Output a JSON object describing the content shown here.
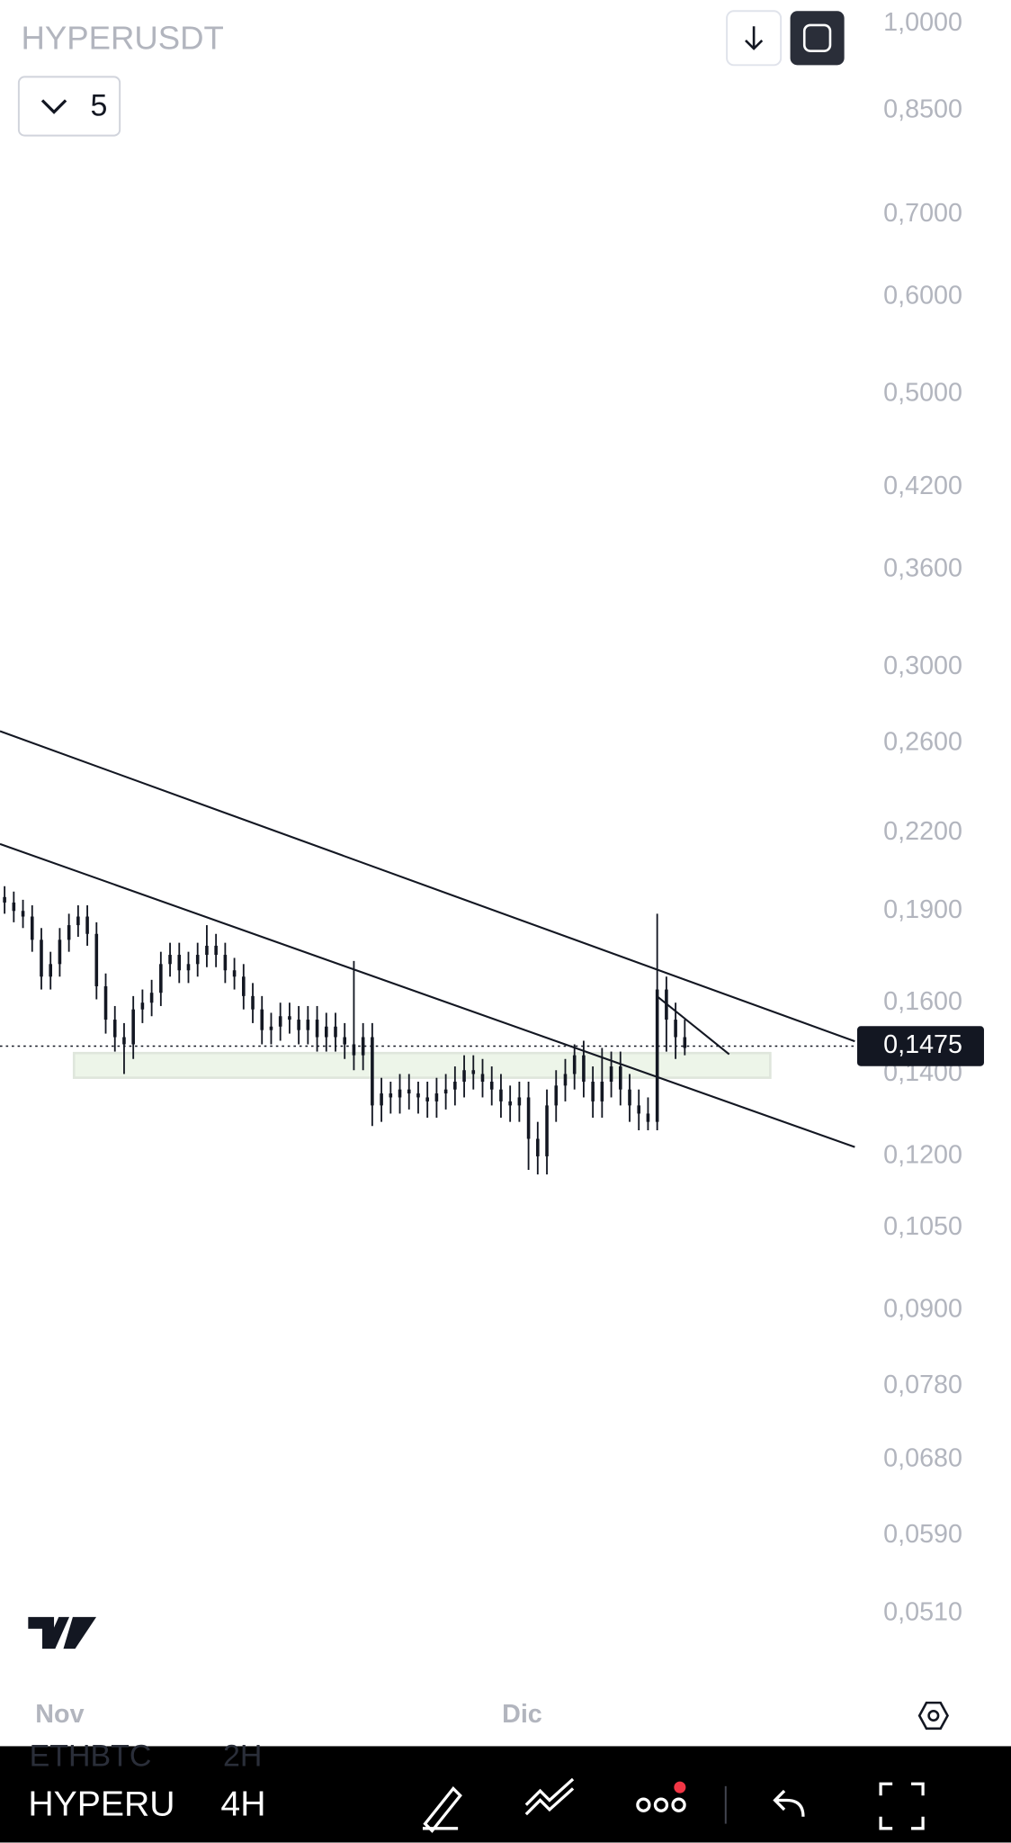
{
  "header": {
    "symbol": "HYPERUSDT",
    "layout_count": "5"
  },
  "chart_data": {
    "type": "candlestick",
    "color": "#131722",
    "yscale": "log",
    "grid": false,
    "x": [
      0.5,
      1.5,
      2.5,
      3.5,
      4.5,
      5.5,
      6.5,
      7.5,
      8.5,
      9.5,
      10.5,
      11.5,
      12.5,
      13.5,
      14.5,
      15.5,
      16.5,
      17.5,
      18.5,
      19.5,
      20.5,
      21.5,
      22.5,
      23.5,
      24.5,
      25.5,
      26.5,
      27.5,
      28.5,
      29.5,
      30.5,
      31.5,
      32.5,
      33.5,
      34.5,
      35.5,
      36.5,
      37.5,
      38.5,
      39.5,
      40.5,
      41.5,
      42.5,
      43.5,
      44.5,
      45.5,
      46.5,
      47.5,
      48.5,
      49.5,
      50.5,
      51.5,
      52.5,
      53.5,
      54.5,
      55.5,
      56.5,
      57.5,
      58.5,
      59.5,
      60.5,
      61.5,
      62.5,
      63.5,
      64.5,
      65.5,
      66.5,
      67.5,
      68.5,
      69.5,
      70.5,
      71.5,
      72.5,
      73.5,
      74.5
    ],
    "open": [
      0.195,
      0.193,
      0.19,
      0.188,
      0.18,
      0.168,
      0.172,
      0.18,
      0.185,
      0.188,
      0.182,
      0.165,
      0.155,
      0.15,
      0.148,
      0.158,
      0.16,
      0.163,
      0.172,
      0.175,
      0.17,
      0.172,
      0.175,
      0.178,
      0.175,
      0.17,
      0.168,
      0.162,
      0.158,
      0.152,
      0.153,
      0.156,
      0.155,
      0.152,
      0.155,
      0.15,
      0.153,
      0.15,
      0.148,
      0.145,
      0.15,
      0.132,
      0.135,
      0.134,
      0.136,
      0.135,
      0.134,
      0.133,
      0.135,
      0.136,
      0.138,
      0.141,
      0.14,
      0.138,
      0.136,
      0.133,
      0.132,
      0.134,
      0.124,
      0.12,
      0.132,
      0.137,
      0.14,
      0.145,
      0.138,
      0.133,
      0.138,
      0.142,
      0.136,
      0.132,
      0.13,
      0.128,
      0.164,
      0.155,
      0.15
    ],
    "high": [
      0.199,
      0.197,
      0.194,
      0.192,
      0.184,
      0.176,
      0.184,
      0.189,
      0.192,
      0.192,
      0.186,
      0.169,
      0.159,
      0.154,
      0.162,
      0.164,
      0.167,
      0.176,
      0.179,
      0.179,
      0.176,
      0.179,
      0.185,
      0.182,
      0.179,
      0.174,
      0.172,
      0.166,
      0.162,
      0.157,
      0.16,
      0.16,
      0.159,
      0.159,
      0.159,
      0.157,
      0.157,
      0.154,
      0.173,
      0.154,
      0.154,
      0.139,
      0.138,
      0.14,
      0.14,
      0.138,
      0.138,
      0.139,
      0.14,
      0.142,
      0.145,
      0.145,
      0.144,
      0.142,
      0.14,
      0.137,
      0.138,
      0.138,
      0.128,
      0.136,
      0.141,
      0.144,
      0.148,
      0.149,
      0.142,
      0.147,
      0.146,
      0.146,
      0.14,
      0.136,
      0.134,
      0.189,
      0.168,
      0.16,
      0.155
    ],
    "low": [
      0.189,
      0.186,
      0.184,
      0.176,
      0.164,
      0.164,
      0.168,
      0.176,
      0.181,
      0.178,
      0.161,
      0.151,
      0.146,
      0.14,
      0.144,
      0.154,
      0.156,
      0.159,
      0.168,
      0.166,
      0.166,
      0.168,
      0.171,
      0.171,
      0.166,
      0.164,
      0.158,
      0.154,
      0.148,
      0.148,
      0.149,
      0.151,
      0.148,
      0.148,
      0.146,
      0.146,
      0.146,
      0.144,
      0.141,
      0.141,
      0.127,
      0.128,
      0.13,
      0.13,
      0.131,
      0.13,
      0.129,
      0.129,
      0.131,
      0.132,
      0.134,
      0.136,
      0.134,
      0.132,
      0.129,
      0.128,
      0.128,
      0.117,
      0.116,
      0.116,
      0.128,
      0.133,
      0.136,
      0.134,
      0.129,
      0.129,
      0.134,
      0.132,
      0.128,
      0.126,
      0.126,
      0.126,
      0.146,
      0.144,
      0.145
    ],
    "close": [
      0.193,
      0.19,
      0.188,
      0.18,
      0.168,
      0.172,
      0.18,
      0.185,
      0.188,
      0.182,
      0.165,
      0.155,
      0.15,
      0.148,
      0.158,
      0.16,
      0.163,
      0.172,
      0.175,
      0.17,
      0.172,
      0.175,
      0.178,
      0.175,
      0.17,
      0.168,
      0.162,
      0.158,
      0.152,
      0.153,
      0.156,
      0.155,
      0.152,
      0.155,
      0.15,
      0.153,
      0.15,
      0.148,
      0.145,
      0.15,
      0.132,
      0.135,
      0.134,
      0.136,
      0.135,
      0.134,
      0.133,
      0.135,
      0.136,
      0.138,
      0.141,
      0.14,
      0.138,
      0.136,
      0.133,
      0.132,
      0.134,
      0.124,
      0.12,
      0.132,
      0.137,
      0.14,
      0.145,
      0.138,
      0.133,
      0.138,
      0.142,
      0.136,
      0.132,
      0.13,
      0.128,
      0.164,
      0.155,
      0.15,
      0.147
    ],
    "xlim": [
      0,
      93
    ],
    "xticks": [
      {
        "value": 6.5,
        "label": "Nov"
      },
      {
        "value": 56.8,
        "label": "Dic"
      }
    ],
    "ylim": [
      0.044,
      1.045
    ],
    "yticks": [
      {
        "value": 1.0,
        "label": "1,0000"
      },
      {
        "value": 0.85,
        "label": "0,8500"
      },
      {
        "value": 0.7,
        "label": "0,7000"
      },
      {
        "value": 0.6,
        "label": "0,6000"
      },
      {
        "value": 0.5,
        "label": "0,5000"
      },
      {
        "value": 0.42,
        "label": "0,4200"
      },
      {
        "value": 0.36,
        "label": "0,3600"
      },
      {
        "value": 0.3,
        "label": "0,3000"
      },
      {
        "value": 0.26,
        "label": "0,2600"
      },
      {
        "value": 0.22,
        "label": "0,2200"
      },
      {
        "value": 0.19,
        "label": "0,1900"
      },
      {
        "value": 0.16,
        "label": "0,1600"
      },
      {
        "value": 0.14,
        "label": "0,1400"
      },
      {
        "value": 0.12,
        "label": "0,1200"
      },
      {
        "value": 0.105,
        "label": "0,1050"
      },
      {
        "value": 0.09,
        "label": "0,0900"
      },
      {
        "value": 0.078,
        "label": "0,0780"
      },
      {
        "value": 0.068,
        "label": "0,0680"
      },
      {
        "value": 0.059,
        "label": "0,0590"
      },
      {
        "value": 0.051,
        "label": "0,0510"
      }
    ],
    "last_price": {
      "value": 0.1475,
      "label": "0,1475"
    }
  },
  "toolbar": {
    "symbol": "HYPERU",
    "interval": "4H",
    "previous_symbol": "ETHBTC",
    "previous_interval": "2H"
  }
}
